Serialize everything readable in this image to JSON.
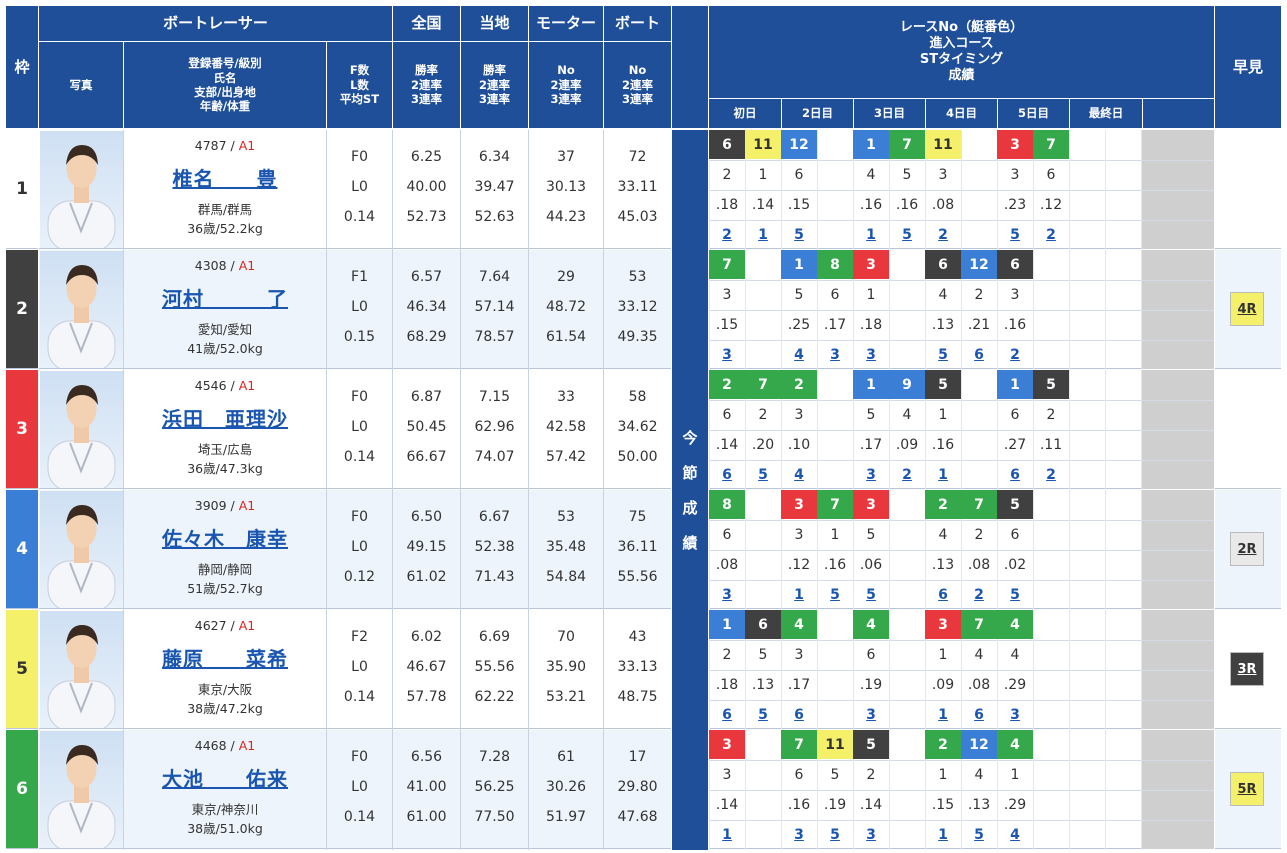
{
  "header": {
    "frame": "枠",
    "racer": "ボートレーサー",
    "photo": "写真",
    "info": [
      "登録番号/級別",
      "氏名",
      "支部/出身地",
      "年齢/体重"
    ],
    "fl": [
      "F数",
      "L数",
      "平均ST"
    ],
    "national": "全国",
    "local": "当地",
    "motor": "モーター",
    "boat": "ボート",
    "rate3": [
      "勝率",
      "2連率",
      "3連率"
    ],
    "no3": [
      "No",
      "2連率",
      "3連率"
    ],
    "race_info": [
      "レースNo（艇番色）",
      "進入コース",
      "STタイミング",
      "成績"
    ],
    "early": "早見",
    "days": [
      "初日",
      "2日目",
      "3日目",
      "4日目",
      "5日目",
      "最終日"
    ],
    "side": [
      "今",
      "節",
      "成",
      "績"
    ]
  },
  "colors": {
    "1": "#ffffff",
    "2": "#404040",
    "3": "#e8383d",
    "4": "#3a7fd5",
    "5": "#f5f06a",
    "6": "#36a84c"
  },
  "racers": [
    {
      "frame": "1",
      "reg": "4787",
      "grade": "A1",
      "name": "椎名　　豊",
      "branch": "群馬/群馬",
      "age": "36歳/52.2kg",
      "f": "F0",
      "l": "L0",
      "st": "0.14",
      "nat": [
        "6.25",
        "40.00",
        "52.73"
      ],
      "loc": [
        "6.34",
        "39.47",
        "52.63"
      ],
      "motor": [
        "37",
        "30.13",
        "44.23"
      ],
      "boat": [
        "72",
        "33.11",
        "45.03"
      ],
      "early": "",
      "races": [
        {
          "boat": "6",
          "course": "2",
          "st": ".18",
          "result": "2"
        },
        {
          "boat": "11",
          "course": "1",
          "st": ".14",
          "result": "1"
        },
        {
          "boat": "12",
          "course": "6",
          "st": ".15",
          "result": "5"
        },
        {
          "boat": "",
          "course": "",
          "st": "",
          "result": ""
        },
        {
          "boat": "1",
          "course": "4",
          "st": ".16",
          "result": "1"
        },
        {
          "boat": "7",
          "course": "5",
          "st": ".16",
          "result": "5"
        },
        {
          "boat": "11",
          "course": "3",
          "st": ".08",
          "result": "2"
        },
        {
          "boat": "",
          "course": "",
          "st": "",
          "result": ""
        },
        {
          "boat": "3",
          "course": "3",
          "st": ".23",
          "result": "5"
        },
        {
          "boat": "7",
          "course": "6",
          "st": ".12",
          "result": "2"
        }
      ]
    },
    {
      "frame": "2",
      "reg": "4308",
      "grade": "A1",
      "name": "河村　　　了",
      "branch": "愛知/愛知",
      "age": "41歳/52.0kg",
      "f": "F1",
      "l": "L0",
      "st": "0.15",
      "nat": [
        "6.57",
        "46.34",
        "68.29"
      ],
      "loc": [
        "7.64",
        "57.14",
        "78.57"
      ],
      "motor": [
        "29",
        "48.72",
        "61.54"
      ],
      "boat": [
        "53",
        "33.12",
        "49.35"
      ],
      "early": "4R",
      "races": [
        {
          "boat": "7",
          "course": "3",
          "st": ".15",
          "result": "3"
        },
        {
          "boat": "",
          "course": "",
          "st": "",
          "result": ""
        },
        {
          "boat": "1",
          "course": "5",
          "st": ".25",
          "result": "4"
        },
        {
          "boat": "8",
          "course": "6",
          "st": ".17",
          "result": "3"
        },
        {
          "boat": "3",
          "course": "1",
          "st": ".18",
          "result": "3"
        },
        {
          "boat": "",
          "course": "",
          "st": "",
          "result": ""
        },
        {
          "boat": "6",
          "course": "4",
          "st": ".13",
          "result": "5"
        },
        {
          "boat": "12",
          "course": "2",
          "st": ".21",
          "result": "6"
        },
        {
          "boat": "6",
          "course": "3",
          "st": ".16",
          "result": "2"
        },
        {
          "boat": "",
          "course": "",
          "st": "",
          "result": ""
        }
      ]
    },
    {
      "frame": "3",
      "reg": "4546",
      "grade": "A1",
      "name": "浜田　亜理沙",
      "branch": "埼玉/広島",
      "age": "36歳/47.3kg",
      "f": "F0",
      "l": "L0",
      "st": "0.14",
      "nat": [
        "6.87",
        "50.45",
        "66.67"
      ],
      "loc": [
        "7.15",
        "62.96",
        "74.07"
      ],
      "motor": [
        "33",
        "42.58",
        "57.42"
      ],
      "boat": [
        "58",
        "34.62",
        "50.00"
      ],
      "early": "",
      "races": [
        {
          "boat": "2",
          "course": "6",
          "st": ".14",
          "result": "6"
        },
        {
          "boat": "7",
          "course": "2",
          "st": ".20",
          "result": "5"
        },
        {
          "boat": "2",
          "course": "3",
          "st": ".10",
          "result": "4"
        },
        {
          "boat": "",
          "course": "",
          "st": "",
          "result": ""
        },
        {
          "boat": "1",
          "course": "5",
          "st": ".17",
          "result": "3"
        },
        {
          "boat": "9",
          "course": "4",
          "st": ".09",
          "result": "2"
        },
        {
          "boat": "5",
          "course": "1",
          "st": ".16",
          "result": "1"
        },
        {
          "boat": "",
          "course": "",
          "st": "",
          "result": ""
        },
        {
          "boat": "1",
          "course": "6",
          "st": ".27",
          "result": "6"
        },
        {
          "boat": "5",
          "course": "2",
          "st": ".11",
          "result": "2"
        }
      ]
    },
    {
      "frame": "4",
      "reg": "3909",
      "grade": "A1",
      "name": "佐々木　康幸",
      "branch": "静岡/静岡",
      "age": "51歳/52.7kg",
      "f": "F0",
      "l": "L0",
      "st": "0.12",
      "nat": [
        "6.50",
        "49.15",
        "61.02"
      ],
      "loc": [
        "6.67",
        "52.38",
        "71.43"
      ],
      "motor": [
        "53",
        "35.48",
        "54.84"
      ],
      "boat": [
        "75",
        "36.11",
        "55.56"
      ],
      "early": "2R",
      "races": [
        {
          "boat": "8",
          "course": "6",
          "st": ".08",
          "result": "3"
        },
        {
          "boat": "",
          "course": "",
          "st": "",
          "result": ""
        },
        {
          "boat": "3",
          "course": "3",
          "st": ".12",
          "result": "1"
        },
        {
          "boat": "7",
          "course": "1",
          "st": ".16",
          "result": "5"
        },
        {
          "boat": "3",
          "course": "5",
          "st": ".06",
          "result": "5"
        },
        {
          "boat": "",
          "course": "",
          "st": "",
          "result": ""
        },
        {
          "boat": "2",
          "course": "4",
          "st": ".13",
          "result": "6"
        },
        {
          "boat": "7",
          "course": "2",
          "st": ".08",
          "result": "2"
        },
        {
          "boat": "5",
          "course": "6",
          "st": ".02",
          "result": "5"
        },
        {
          "boat": "",
          "course": "",
          "st": "",
          "result": ""
        }
      ]
    },
    {
      "frame": "5",
      "reg": "4627",
      "grade": "A1",
      "name": "藤原　　菜希",
      "branch": "東京/大阪",
      "age": "38歳/47.2kg",
      "f": "F2",
      "l": "L0",
      "st": "0.14",
      "nat": [
        "6.02",
        "46.67",
        "57.78"
      ],
      "loc": [
        "6.69",
        "55.56",
        "62.22"
      ],
      "motor": [
        "70",
        "35.90",
        "53.21"
      ],
      "boat": [
        "43",
        "33.13",
        "48.75"
      ],
      "early": "3R",
      "races": [
        {
          "boat": "1",
          "course": "2",
          "st": ".18",
          "result": "6"
        },
        {
          "boat": "6",
          "course": "5",
          "st": ".13",
          "result": "5"
        },
        {
          "boat": "4",
          "course": "3",
          "st": ".17",
          "result": "6"
        },
        {
          "boat": "",
          "course": "",
          "st": "",
          "result": ""
        },
        {
          "boat": "4",
          "course": "6",
          "st": ".19",
          "result": "3"
        },
        {
          "boat": "",
          "course": "",
          "st": "",
          "result": ""
        },
        {
          "boat": "3",
          "course": "1",
          "st": ".09",
          "result": "1"
        },
        {
          "boat": "7",
          "course": "4",
          "st": ".08",
          "result": "6"
        },
        {
          "boat": "4",
          "course": "4",
          "st": ".29",
          "result": "3"
        },
        {
          "boat": "",
          "course": "",
          "st": "",
          "result": ""
        }
      ]
    },
    {
      "frame": "6",
      "reg": "4468",
      "grade": "A1",
      "name": "大池　　佑来",
      "branch": "東京/神奈川",
      "age": "38歳/51.0kg",
      "f": "F0",
      "l": "L0",
      "st": "0.14",
      "nat": [
        "6.56",
        "41.00",
        "61.00"
      ],
      "loc": [
        "7.28",
        "56.25",
        "77.50"
      ],
      "motor": [
        "61",
        "30.26",
        "51.97"
      ],
      "boat": [
        "17",
        "29.80",
        "47.68"
      ],
      "early": "5R",
      "races": [
        {
          "boat": "3",
          "course": "3",
          "st": ".14",
          "result": "1"
        },
        {
          "boat": "",
          "course": "",
          "st": "",
          "result": ""
        },
        {
          "boat": "7",
          "course": "6",
          "st": ".16",
          "result": "3"
        },
        {
          "boat": "11",
          "course": "5",
          "st": ".19",
          "result": "5"
        },
        {
          "boat": "5",
          "course": "2",
          "st": ".14",
          "result": "3"
        },
        {
          "boat": "",
          "course": "",
          "st": "",
          "result": ""
        },
        {
          "boat": "2",
          "course": "1",
          "st": ".15",
          "result": "1"
        },
        {
          "boat": "12",
          "course": "4",
          "st": ".13",
          "result": "5"
        },
        {
          "boat": "4",
          "course": "1",
          "st": ".29",
          "result": "4"
        },
        {
          "boat": "",
          "course": "",
          "st": "",
          "result": ""
        }
      ]
    }
  ]
}
